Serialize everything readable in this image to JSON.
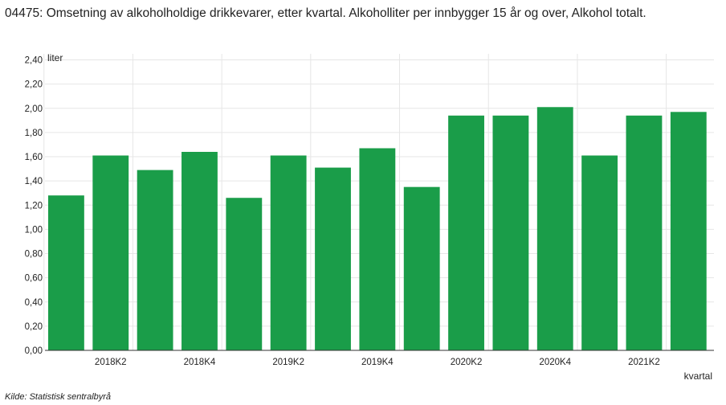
{
  "title": "04475: Omsetning av alkoholholdige drikkevarer, etter kvartal. Alkoholliter per innbygger 15 år og over, Alkohol totalt.",
  "source": "Kilde:  Statistisk sentralbyrå",
  "colors": {
    "bar": "#1a9d49",
    "grid": "#e6e6e6",
    "axis": "#333333"
  },
  "chart_data": {
    "type": "bar",
    "ylabel": "liter",
    "xlabel": "kvartal",
    "ylim": [
      0,
      2.45
    ],
    "grid": true,
    "yticks": [
      "0,00",
      "0,20",
      "0,40",
      "0,60",
      "0,80",
      "1,00",
      "1,20",
      "1,40",
      "1,60",
      "1,80",
      "2,00",
      "2,20",
      "2,40"
    ],
    "xtick_labels": [
      "2018K2",
      "2018K4",
      "2019K2",
      "2019K4",
      "2020K2",
      "2020K4",
      "2021K2"
    ],
    "categories": [
      "2018K1",
      "2018K2",
      "2018K3",
      "2018K4",
      "2019K1",
      "2019K2",
      "2019K3",
      "2019K4",
      "2020K1",
      "2020K2",
      "2020K3",
      "2020K4",
      "2021K1",
      "2021K2",
      "2021K3"
    ],
    "values": [
      1.28,
      1.61,
      1.49,
      1.64,
      1.26,
      1.61,
      1.51,
      1.67,
      1.35,
      1.94,
      1.94,
      2.01,
      1.61,
      1.94,
      1.97
    ]
  }
}
